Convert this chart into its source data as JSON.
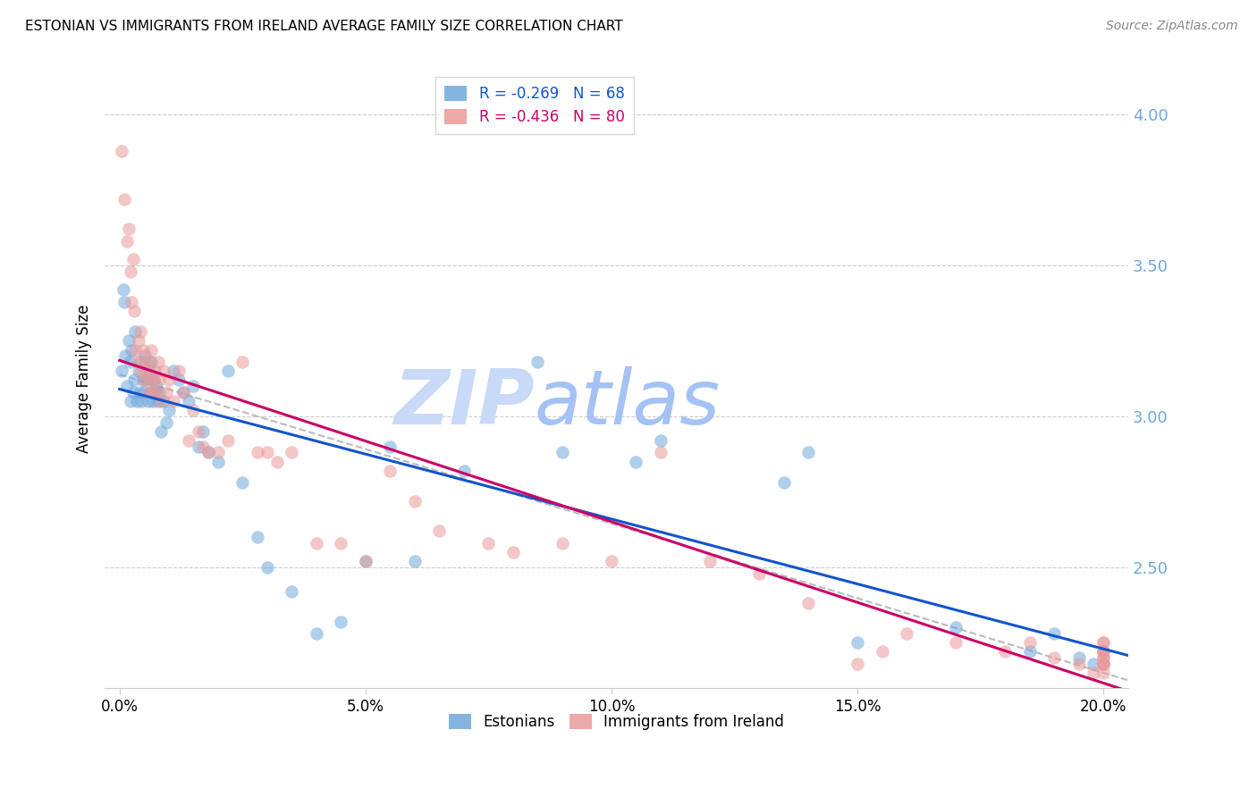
{
  "title": "ESTONIAN VS IMMIGRANTS FROM IRELAND AVERAGE FAMILY SIZE CORRELATION CHART",
  "source": "Source: ZipAtlas.com",
  "ylabel": "Average Family Size",
  "xlabel_ticks": [
    "0.0%",
    "5.0%",
    "10.0%",
    "15.0%",
    "20.0%"
  ],
  "xlabel_vals": [
    0.0,
    5.0,
    10.0,
    15.0,
    20.0
  ],
  "yticks": [
    2.5,
    3.0,
    3.5,
    4.0
  ],
  "ylim": [
    2.1,
    4.15
  ],
  "xlim": [
    -0.3,
    20.5
  ],
  "R_blue": -0.269,
  "N_blue": 68,
  "R_pink": -0.436,
  "N_pink": 80,
  "blue_color": "#6fa8dc",
  "pink_color": "#ea9999",
  "blue_line_color": "#1155cc",
  "pink_line_color": "#cc0066",
  "right_axis_color": "#6fa8dc",
  "watermark_zip_color": "#c9daf8",
  "watermark_atlas_color": "#a4c2f4",
  "legend1_label": "Estonians",
  "legend2_label": "Immigrants from Ireland",
  "blue_x": [
    0.05,
    0.08,
    0.1,
    0.12,
    0.15,
    0.18,
    0.2,
    0.22,
    0.25,
    0.28,
    0.3,
    0.32,
    0.35,
    0.38,
    0.4,
    0.42,
    0.45,
    0.48,
    0.5,
    0.52,
    0.55,
    0.58,
    0.6,
    0.62,
    0.65,
    0.68,
    0.7,
    0.72,
    0.75,
    0.78,
    0.8,
    0.85,
    0.9,
    0.95,
    1.0,
    1.1,
    1.2,
    1.3,
    1.4,
    1.5,
    1.6,
    1.7,
    1.8,
    2.0,
    2.2,
    2.5,
    2.8,
    3.0,
    3.5,
    4.0,
    4.5,
    5.0,
    5.5,
    6.0,
    7.0,
    8.5,
    9.0,
    10.5,
    11.0,
    13.5,
    14.0,
    15.0,
    17.0,
    18.5,
    19.0,
    19.5,
    19.8,
    20.0
  ],
  "blue_y": [
    3.15,
    3.42,
    3.38,
    3.2,
    3.1,
    3.25,
    3.18,
    3.05,
    3.22,
    3.08,
    3.12,
    3.28,
    3.05,
    3.15,
    3.08,
    3.18,
    3.05,
    3.12,
    3.08,
    3.2,
    3.12,
    3.05,
    3.15,
    3.08,
    3.18,
    3.05,
    3.12,
    3.08,
    3.1,
    3.05,
    3.08,
    2.95,
    3.05,
    2.98,
    3.02,
    3.15,
    3.12,
    3.08,
    3.05,
    3.1,
    2.9,
    2.95,
    2.88,
    2.85,
    3.15,
    2.78,
    2.6,
    2.5,
    2.42,
    2.28,
    2.32,
    2.52,
    2.9,
    2.52,
    2.82,
    3.18,
    2.88,
    2.85,
    2.92,
    2.78,
    2.88,
    2.25,
    2.3,
    2.22,
    2.28,
    2.2,
    2.18,
    2.22
  ],
  "pink_x": [
    0.05,
    0.1,
    0.15,
    0.18,
    0.22,
    0.25,
    0.28,
    0.3,
    0.32,
    0.35,
    0.38,
    0.42,
    0.45,
    0.48,
    0.5,
    0.52,
    0.55,
    0.58,
    0.6,
    0.62,
    0.65,
    0.68,
    0.7,
    0.72,
    0.75,
    0.78,
    0.8,
    0.85,
    0.9,
    0.95,
    1.0,
    1.1,
    1.2,
    1.3,
    1.4,
    1.5,
    1.6,
    1.7,
    1.8,
    2.0,
    2.2,
    2.5,
    2.8,
    3.0,
    3.2,
    3.5,
    4.0,
    4.5,
    5.0,
    5.5,
    6.0,
    6.5,
    7.5,
    8.0,
    9.0,
    10.0,
    11.0,
    12.0,
    13.0,
    14.0,
    15.0,
    15.5,
    16.0,
    17.0,
    18.0,
    18.5,
    19.0,
    19.5,
    19.8,
    20.0,
    20.0,
    20.0,
    20.0,
    20.0,
    20.0,
    20.0,
    20.0,
    20.0,
    20.0,
    20.0
  ],
  "pink_y": [
    3.88,
    3.72,
    3.58,
    3.62,
    3.48,
    3.38,
    3.52,
    3.35,
    3.22,
    3.18,
    3.25,
    3.28,
    3.15,
    3.22,
    3.12,
    3.18,
    3.15,
    3.08,
    3.18,
    3.12,
    3.22,
    3.08,
    3.12,
    3.15,
    3.08,
    3.18,
    3.12,
    3.05,
    3.15,
    3.08,
    3.12,
    3.05,
    3.15,
    3.08,
    2.92,
    3.02,
    2.95,
    2.9,
    2.88,
    2.88,
    2.92,
    3.18,
    2.88,
    2.88,
    2.85,
    2.88,
    2.58,
    2.58,
    2.52,
    2.82,
    2.72,
    2.62,
    2.58,
    2.55,
    2.58,
    2.52,
    2.88,
    2.52,
    2.48,
    2.38,
    2.18,
    2.22,
    2.28,
    2.25,
    2.22,
    2.25,
    2.2,
    2.18,
    2.15,
    2.18,
    2.25,
    2.22,
    2.18,
    2.25,
    2.2,
    2.22,
    2.18,
    2.15,
    2.2,
    2.18
  ],
  "scatter_size": 110,
  "scatter_alpha": 0.55
}
